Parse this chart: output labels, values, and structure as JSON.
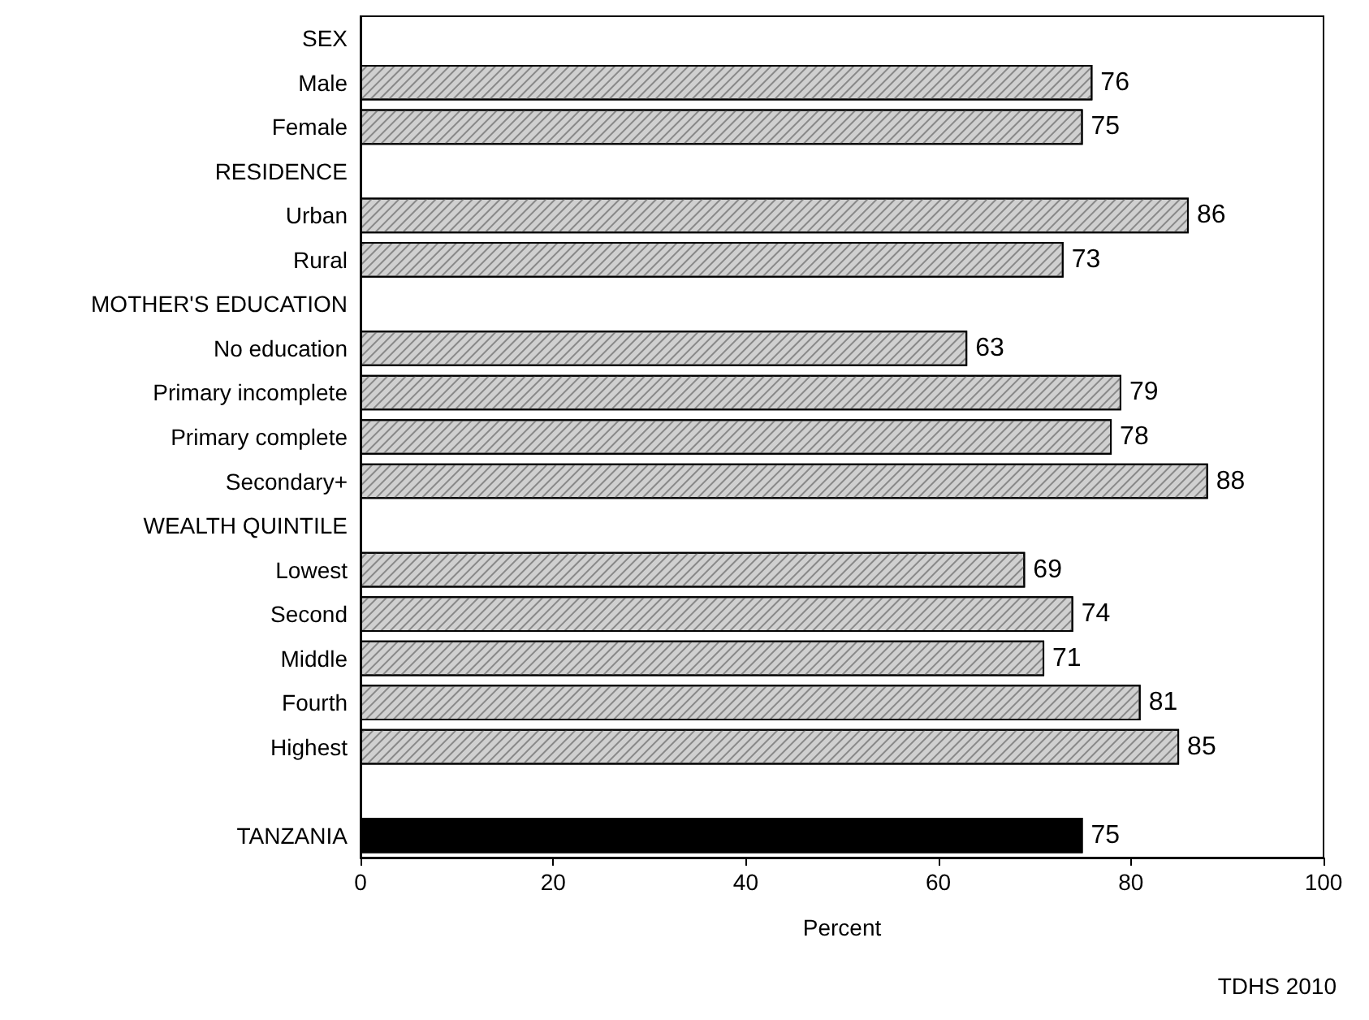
{
  "chart_data": {
    "type": "bar",
    "orientation": "horizontal",
    "xlabel": "Percent",
    "categories": [
      "SEX",
      "Male",
      "Female",
      "RESIDENCE",
      "Urban",
      "Rural",
      "MOTHER'S EDUCATION",
      "No education",
      "Primary incomplete",
      "Primary complete",
      "Secondary+",
      "WEALTH QUINTILE",
      "Lowest",
      "Second",
      "Middle",
      "Fourth",
      "Highest",
      null,
      "TANZANIA"
    ],
    "values": [
      null,
      76,
      75,
      null,
      86,
      73,
      null,
      63,
      79,
      78,
      88,
      null,
      69,
      74,
      71,
      81,
      85,
      null,
      75
    ],
    "colors": [
      "#d0d0d0",
      "#d0d0d0",
      "#d0d0d0",
      "#d0d0d0",
      "#d0d0d0",
      "#d0d0d0",
      "#d0d0d0",
      "#d0d0d0",
      "#d0d0d0",
      "#d0d0d0",
      "#d0d0d0",
      "#d0d0d0",
      "#d0d0d0",
      "#d0d0d0",
      "#d0d0d0",
      "#d0d0d0",
      "#d0d0d0",
      "#d0d0d0",
      "#000000"
    ],
    "xlim": [
      0,
      100
    ],
    "xticks": [
      0,
      20,
      40,
      60,
      80,
      100
    ],
    "data_labels": true,
    "grid": false,
    "annotations": [
      "TDHS 2010"
    ]
  }
}
